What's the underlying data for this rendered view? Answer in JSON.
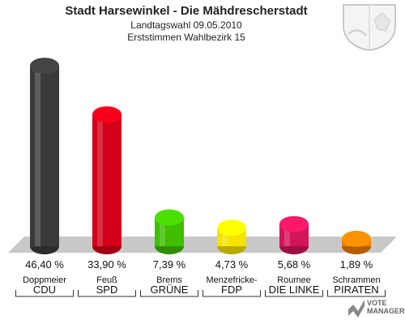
{
  "header": {
    "title": "Stadt Harsewinkel - Die Mähdrescherstadt",
    "subtitle1": "Landtagswahl 09.05.2010",
    "subtitle2": "Erststimmen Wahlbezirk 15"
  },
  "brand": {
    "line1": "VOTE",
    "line2": "MANAGER"
  },
  "chart_data": {
    "type": "bar",
    "title": "Stadt Harsewinkel - Die Mähdrescherstadt",
    "subtitle": "Landtagswahl 09.05.2010 / Erststimmen Wahlbezirk 15",
    "categories": [
      "CDU",
      "SPD",
      "GRÜNE",
      "FDP",
      "DIE LINKE",
      "PIRATEN"
    ],
    "candidates": [
      "Doppmeier",
      "Feuß",
      "Brems",
      "Menzefricke-",
      "Roumee",
      "Schrammen"
    ],
    "values": [
      46.4,
      33.9,
      7.39,
      4.73,
      5.68,
      1.89
    ],
    "value_labels": [
      "46,40 %",
      "33,90 %",
      "7,39 %",
      "4,73 %",
      "5,68 %",
      "1,89 %"
    ],
    "colors": [
      "#3a3a3a",
      "#d4001a",
      "#3fbf00",
      "#f5e200",
      "#d4145a",
      "#f07c00"
    ],
    "ylim": [
      0,
      50
    ]
  }
}
